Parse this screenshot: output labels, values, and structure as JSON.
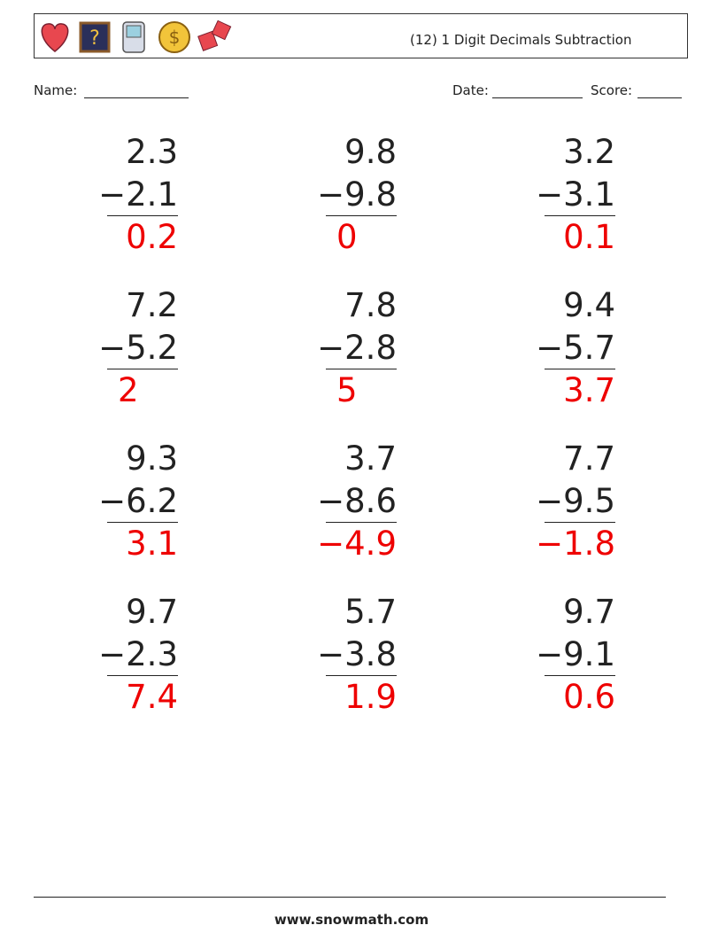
{
  "header": {
    "title": "(12) 1 Digit Decimals Subtraction"
  },
  "fields": {
    "name": "Name:",
    "date": "Date:",
    "score": "Score:"
  },
  "problems": [
    {
      "top": "2.3",
      "bottom": "−2.1",
      "answer": "0.2"
    },
    {
      "top": "9.8",
      "bottom": "−9.8",
      "answer": "0"
    },
    {
      "top": "3.2",
      "bottom": "−3.1",
      "answer": "0.1"
    },
    {
      "top": "7.2",
      "bottom": "−5.2",
      "answer": "2"
    },
    {
      "top": "7.8",
      "bottom": "−2.8",
      "answer": "5"
    },
    {
      "top": "9.4",
      "bottom": "−5.7",
      "answer": "3.7"
    },
    {
      "top": "9.3",
      "bottom": "−6.2",
      "answer": "3.1"
    },
    {
      "top": "3.7",
      "bottom": "−8.6",
      "answer": "−4.9"
    },
    {
      "top": "7.7",
      "bottom": "−9.5",
      "answer": "−1.8"
    },
    {
      "top": "9.7",
      "bottom": "−2.3",
      "answer": "7.4"
    },
    {
      "top": "5.7",
      "bottom": "−3.8",
      "answer": "1.9"
    },
    {
      "top": "9.7",
      "bottom": "−9.1",
      "answer": "0.6"
    }
  ],
  "footer": {
    "url": "www.snowmath.com"
  }
}
